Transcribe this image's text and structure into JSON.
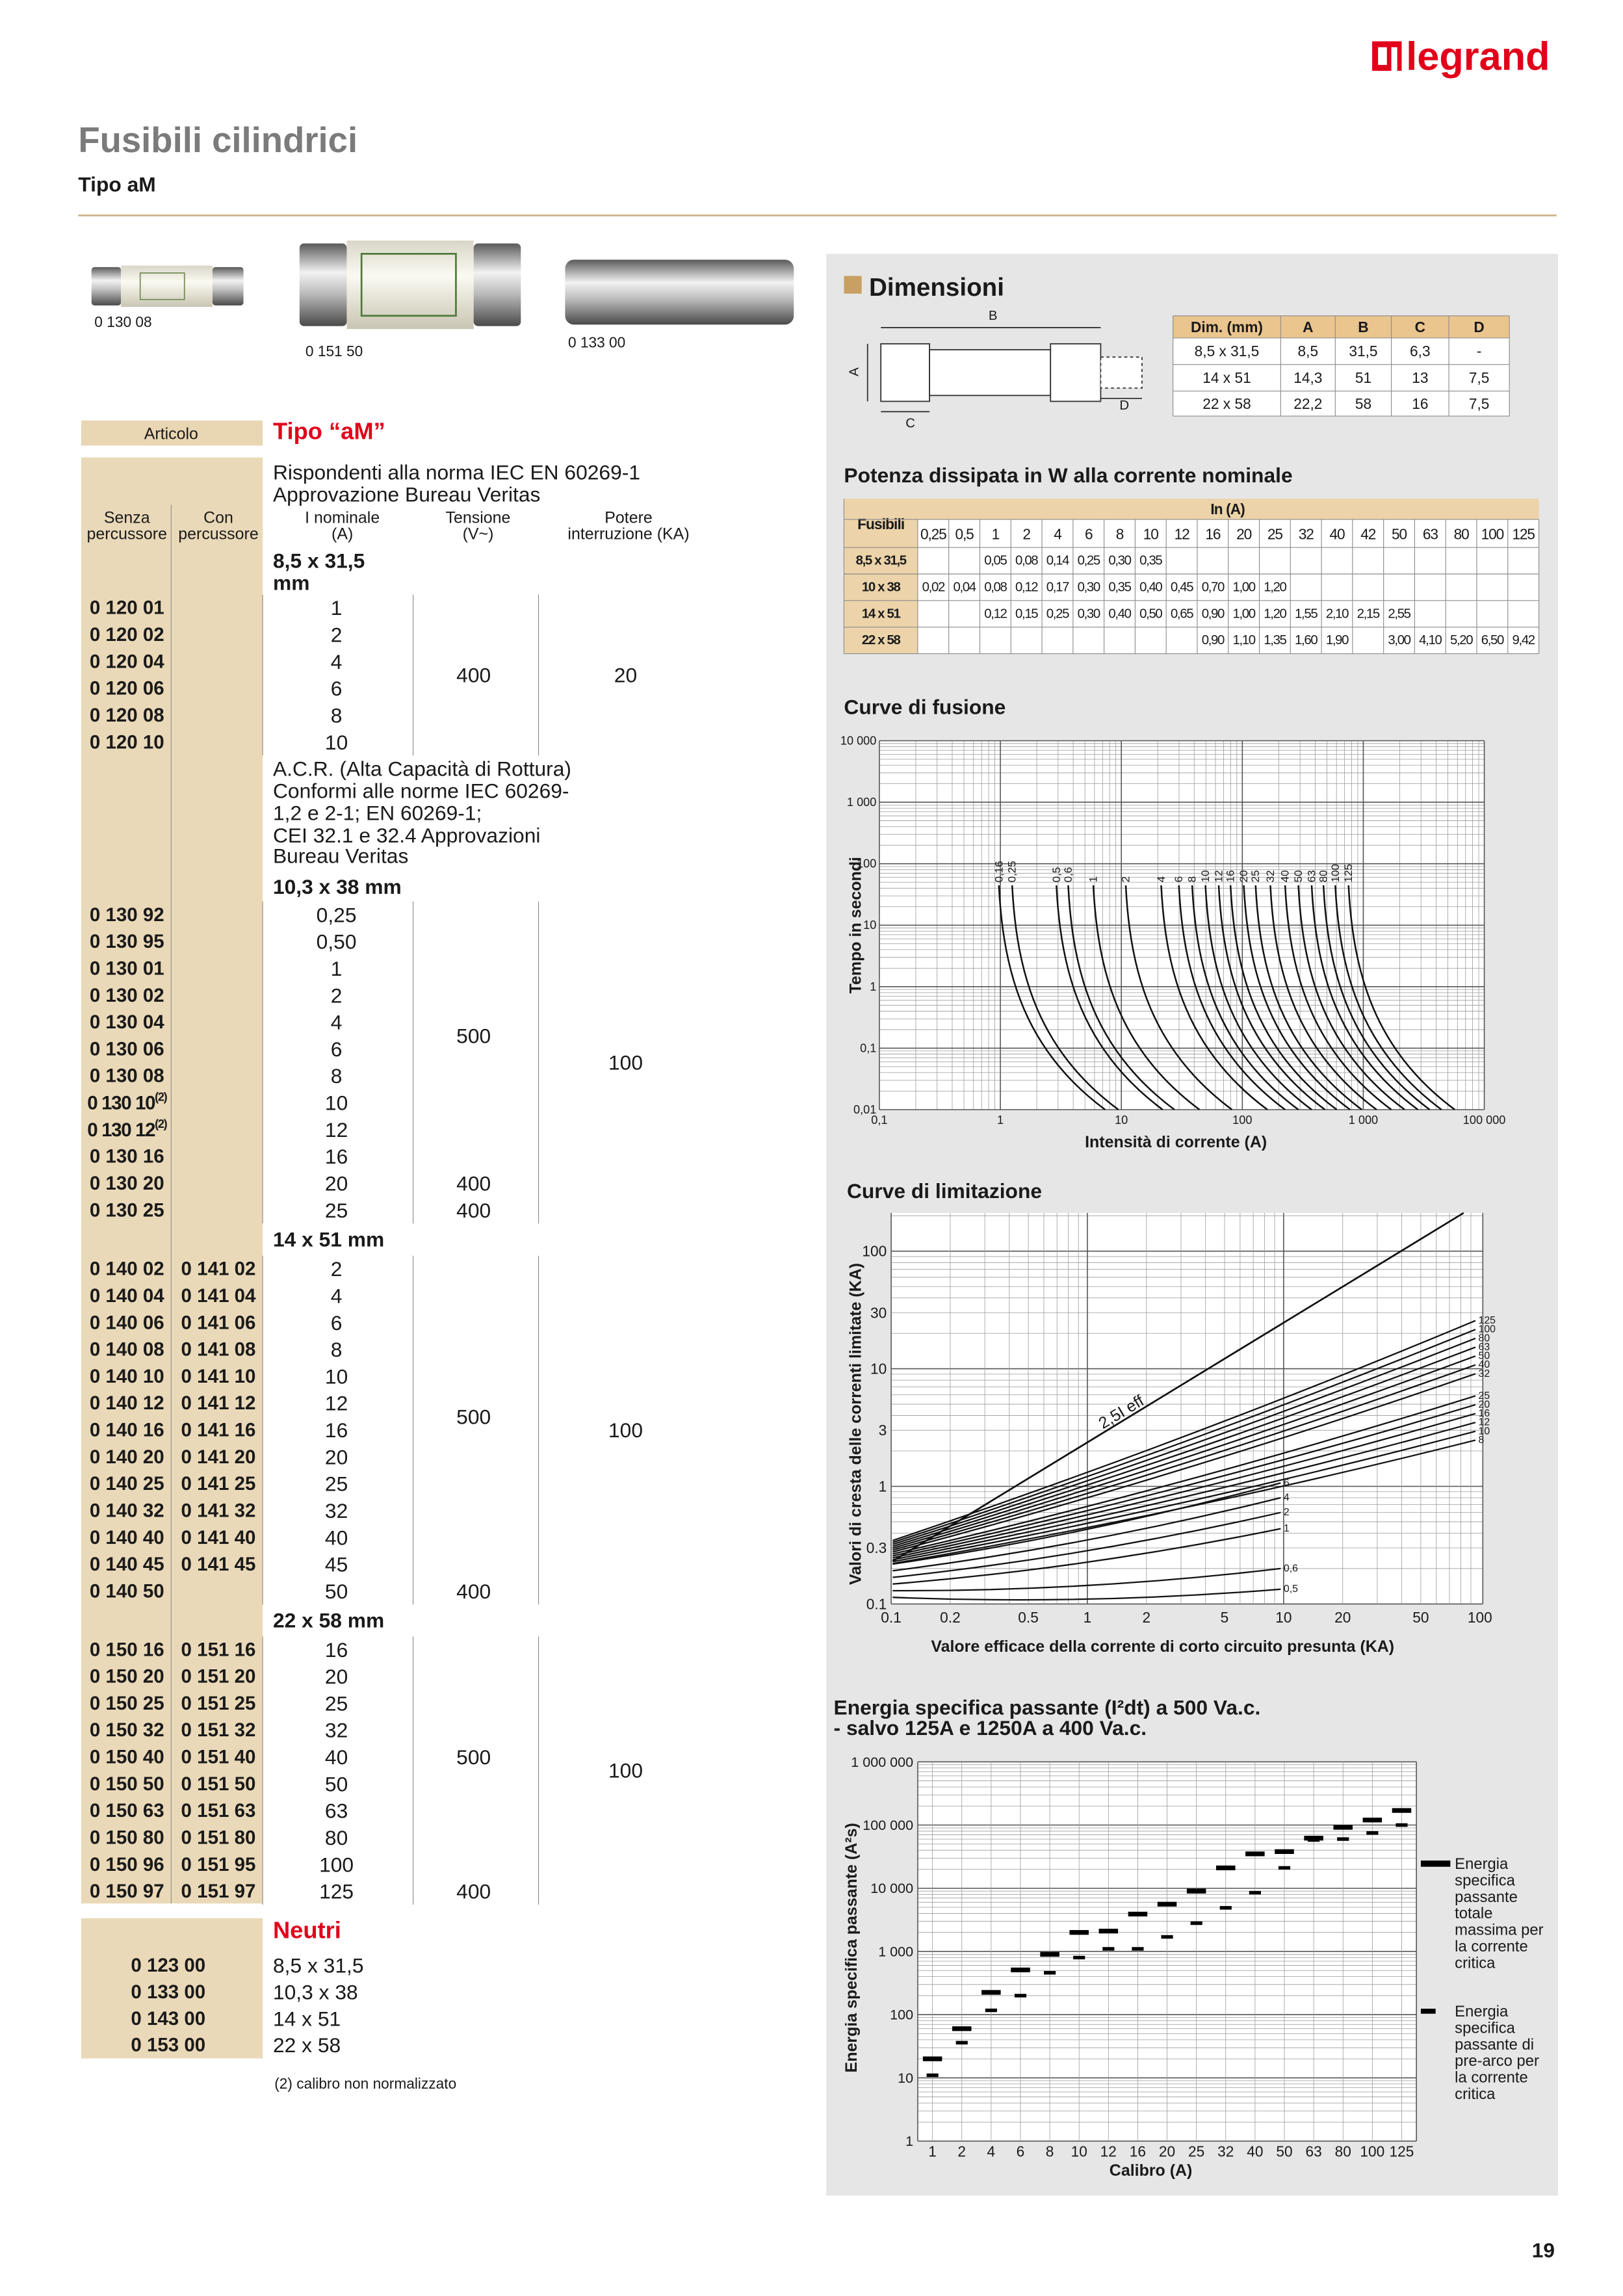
{
  "header": {
    "brand": "legrand",
    "title": "Fusibili cilindrici",
    "subtitle": "Tipo aM"
  },
  "images": [
    "0 130 08",
    "0 151 50",
    "0 133 00"
  ],
  "table": {
    "articolo": "Articolo",
    "tipo": "Tipo “aM”",
    "columns": {
      "senza": [
        "Senza",
        "percussore"
      ],
      "con": [
        "Con",
        "percussore"
      ],
      "inom": [
        "I nominale",
        "(A)"
      ],
      "tensione": [
        "Tensione",
        "(V~)"
      ],
      "potere": [
        "Potere",
        "interruzione (KA)"
      ]
    },
    "groups": [
      {
        "note": [
          "Rispondenti alla norma IEC EN 60269-1",
          "Approvazione Bureau Veritas"
        ],
        "size": [
          "8,5 x 31,5",
          "mm"
        ],
        "rows": [
          {
            "senza": "0 120 01",
            "in": "1"
          },
          {
            "senza": "0 120 02",
            "in": "2"
          },
          {
            "senza": "0 120 04",
            "in": "4"
          },
          {
            "senza": "0 120 06",
            "in": "6"
          },
          {
            "senza": "0 120 08",
            "in": "8"
          },
          {
            "senza": "0 120 10",
            "in": "10"
          }
        ],
        "tensione": [
          "400"
        ],
        "potere": [
          "20"
        ]
      },
      {
        "note": [
          "A.C.R. (Alta Capacità di Rottura)",
          "Conformi alle norme IEC 60269-",
          "1,2 e 2-1;  EN 60269-1;",
          "CEI 32.1 e 32.4  Approvazioni",
          "Bureau Veritas"
        ],
        "size": [
          "10,3 x 38 mm"
        ],
        "rows": [
          {
            "senza": "0 130 92",
            "in": "0,25"
          },
          {
            "senza": "0 130 95",
            "in": "0,50"
          },
          {
            "senza": "0 130 01",
            "in": "1"
          },
          {
            "senza": "0 130 02",
            "in": "2"
          },
          {
            "senza": "0 130 04",
            "in": "4"
          },
          {
            "senza": "0 130 06",
            "in": "6"
          },
          {
            "senza": "0 130 08",
            "in": "8"
          },
          {
            "senza": "0 130 10",
            "ref": "(2)",
            "in": "10"
          },
          {
            "senza": "0 130 12",
            "ref": "(2)",
            "in": "12"
          },
          {
            "senza": "0 130 16",
            "in": "16"
          },
          {
            "senza": "0 130 20",
            "in": "20"
          },
          {
            "senza": "0 130 25",
            "in": "25"
          }
        ],
        "tensione": [
          "500",
          "400",
          "400"
        ],
        "potere": [
          "100"
        ]
      },
      {
        "size": [
          "14 x 51 mm"
        ],
        "rows": [
          {
            "senza": "0 140 02",
            "con": "0 141 02",
            "in": "2"
          },
          {
            "senza": "0 140 04",
            "con": "0 141 04",
            "in": "4"
          },
          {
            "senza": "0 140 06",
            "con": "0 141 06",
            "in": "6"
          },
          {
            "senza": "0 140 08",
            "con": "0 141 08",
            "in": "8"
          },
          {
            "senza": "0 140 10",
            "con": "0 141 10",
            "in": "10"
          },
          {
            "senza": "0 140 12",
            "con": "0 141 12",
            "in": "12"
          },
          {
            "senza": "0 140 16",
            "con": "0 141 16",
            "in": "16"
          },
          {
            "senza": "0 140 20",
            "con": "0 141 20",
            "in": "20"
          },
          {
            "senza": "0 140 25",
            "con": "0 141 25",
            "in": "25"
          },
          {
            "senza": "0 140 32",
            "con": "0 141 32",
            "in": "32"
          },
          {
            "senza": "0 140 40",
            "con": "0 141 40",
            "in": "40"
          },
          {
            "senza": "0 140 45",
            "con": "0 141 45",
            "in": "45"
          },
          {
            "senza": "0 140 50",
            "in": "50"
          }
        ],
        "tensione": [
          "500",
          "400"
        ],
        "potere": [
          "100"
        ]
      },
      {
        "size": [
          "22 x 58 mm"
        ],
        "rows": [
          {
            "senza": "0 150 16",
            "con": "0 151 16",
            "in": "16"
          },
          {
            "senza": "0 150 20",
            "con": "0 151 20",
            "in": "20"
          },
          {
            "senza": "0 150 25",
            "con": "0 151 25",
            "in": "25"
          },
          {
            "senza": "0 150 32",
            "con": "0 151 32",
            "in": "32"
          },
          {
            "senza": "0 150 40",
            "con": "0 151 40",
            "in": "40"
          },
          {
            "senza": "0 150 50",
            "con": "0 151 50",
            "in": "50"
          },
          {
            "senza": "0 150 63",
            "con": "0 151 63",
            "in": "63"
          },
          {
            "senza": "0 150 80",
            "con": "0 151 80",
            "in": "80"
          },
          {
            "senza": "0 150 96",
            "con": "0 151 95",
            "in": "100"
          },
          {
            "senza": "0 150 97",
            "con": "0 151 97",
            "in": "125"
          }
        ],
        "tensione": [
          "500",
          "400"
        ],
        "potere": [
          "100"
        ]
      }
    ]
  },
  "neutri": {
    "title": "Neutri",
    "rows": [
      [
        "0 123 00",
        "8,5 x 31,5"
      ],
      [
        "0 133 00",
        "10,3 x 38"
      ],
      [
        "0 143 00",
        "14 x 51"
      ],
      [
        "0 153 00",
        "22 x 58"
      ]
    ]
  },
  "footnote": "(2) calibro non normalizzato",
  "dimensioni": {
    "title": "Dimensioni",
    "header": [
      "Dim. (mm)",
      "A",
      "B",
      "C",
      "D"
    ],
    "rows": [
      [
        "8,5 x 31,5",
        "8,5",
        "31,5",
        "6,3",
        "-"
      ],
      [
        "14 x 51",
        "14,3",
        "51",
        "13",
        "7,5"
      ],
      [
        "22 x 58",
        "22,2",
        "58",
        "16",
        "7,5"
      ]
    ]
  },
  "potenza": {
    "title": "Potenza dissipata in W alla corrente nominale",
    "corner": "Fusibili",
    "in_label": "In (A)",
    "currents": [
      "0,25",
      "0,5",
      "1",
      "2",
      "4",
      "6",
      "8",
      "10",
      "12",
      "16",
      "20",
      "25",
      "32",
      "40",
      "42",
      "50",
      "63",
      "80",
      "100",
      "125"
    ],
    "rows": [
      {
        "label": "8,5 x 31,5",
        "values": [
          null,
          null,
          "0,05",
          "0,08",
          "0,14",
          "0,25",
          "0,30",
          "0,35",
          null,
          null,
          null,
          null,
          null,
          null,
          null,
          null,
          null,
          null,
          null,
          null
        ]
      },
      {
        "label": "10 x 38",
        "values": [
          "0,02",
          "0,04",
          "0,08",
          "0,12",
          "0,17",
          "0,30",
          "0,35",
          "0,40",
          "0,45",
          "0,70",
          "1,00",
          "1,20",
          null,
          null,
          null,
          null,
          null,
          null,
          null,
          null
        ]
      },
      {
        "label": "14 x 51",
        "values": [
          null,
          null,
          "0,12",
          "0,15",
          "0,25",
          "0,30",
          "0,40",
          "0,50",
          "0,65",
          "0,90",
          "1,00",
          "1,20",
          "1,55",
          "2,10",
          "2,15",
          "2,55",
          null,
          null,
          null,
          null
        ]
      },
      {
        "label": "22 x 58",
        "values": [
          null,
          null,
          null,
          null,
          null,
          null,
          null,
          null,
          null,
          "0,90",
          "1,10",
          "1,35",
          "1,60",
          "1,90",
          null,
          "3,00",
          "4,10",
          "5,20",
          "6,50",
          "9,42"
        ]
      }
    ]
  },
  "fusione": {
    "title": "Curve di fusione",
    "ylabel": "Tempo in secondi",
    "xlabel": "Intensità di corrente (A)",
    "yticks": [
      "10 000",
      "1 000",
      "100",
      "10",
      "1",
      "0,1",
      "0,01"
    ],
    "xticks": [
      "0,1",
      "1",
      "10",
      "100",
      "1 000",
      "100 000"
    ],
    "curve_labels": [
      "0,16",
      "0,25",
      "0,5",
      "0,6",
      "1",
      "2",
      "4",
      "6",
      "8",
      "10",
      "12",
      "16",
      "20",
      "25",
      "32",
      "40",
      "50",
      "63",
      "80",
      "100",
      "125"
    ]
  },
  "limitazione": {
    "title": "Curve di limitazione",
    "ylabel": "Valori di cresta delle correnti limitate (KA)",
    "xlabel": "Valore efficace della corrente di corto circuito presunta (KA)",
    "annotation": "2,5I eff",
    "log": true,
    "yticks": [
      100,
      30,
      10,
      3,
      1,
      0.3,
      0.1
    ],
    "xticks": [
      0.1,
      0.2,
      0.5,
      1,
      2,
      5,
      10,
      20,
      50,
      100
    ],
    "curve_labels": [
      "125",
      "100",
      "80",
      "63",
      "50",
      "40",
      "32",
      "25",
      "20",
      "16",
      "12",
      "10",
      "8",
      "6",
      "4",
      "2",
      "1",
      "0,6",
      "0,5"
    ]
  },
  "energia": {
    "type": "dash",
    "title": [
      "Energia specifica passante (I²dt) a 500 Va.c.",
      "- salvo 125A e 1250A a 400 Va.c."
    ],
    "ylabel": "Energia specifica passante (A²s)",
    "xlabel": "Calibro (A)",
    "log": true,
    "ylim": [
      1,
      1000000
    ],
    "yticks": [
      {
        "value": 1000000,
        "label": "1 000 000"
      },
      {
        "value": 100000,
        "label": "100 000"
      },
      {
        "value": 10000,
        "label": "10 000"
      },
      {
        "value": 1000,
        "label": "1 000"
      },
      100,
      10,
      1
    ],
    "categories": [
      "1",
      "2",
      "4",
      "6",
      "8",
      "10",
      "12",
      "16",
      "20",
      "25",
      "32",
      "40",
      "50",
      "63",
      "80",
      "100",
      "125"
    ],
    "series": [
      {
        "name": "Energia specifica passante totale massima per la corrente critica",
        "color": "#000000",
        "values": [
          20,
          60,
          225,
          510,
          900,
          2000,
          2100,
          3900,
          5600,
          9000,
          21000,
          35000,
          38000,
          62000,
          92000,
          120000,
          170000
        ]
      },
      {
        "name": "Energia specifica passante di pre-arco per la corrente critica",
        "color": "#000000",
        "values": [
          11,
          36,
          117,
          200,
          460,
          800,
          1100,
          1100,
          1700,
          2800,
          4900,
          8500,
          21000,
          58000,
          60000,
          75000,
          100000
        ]
      }
    ]
  },
  "page_number": "19"
}
